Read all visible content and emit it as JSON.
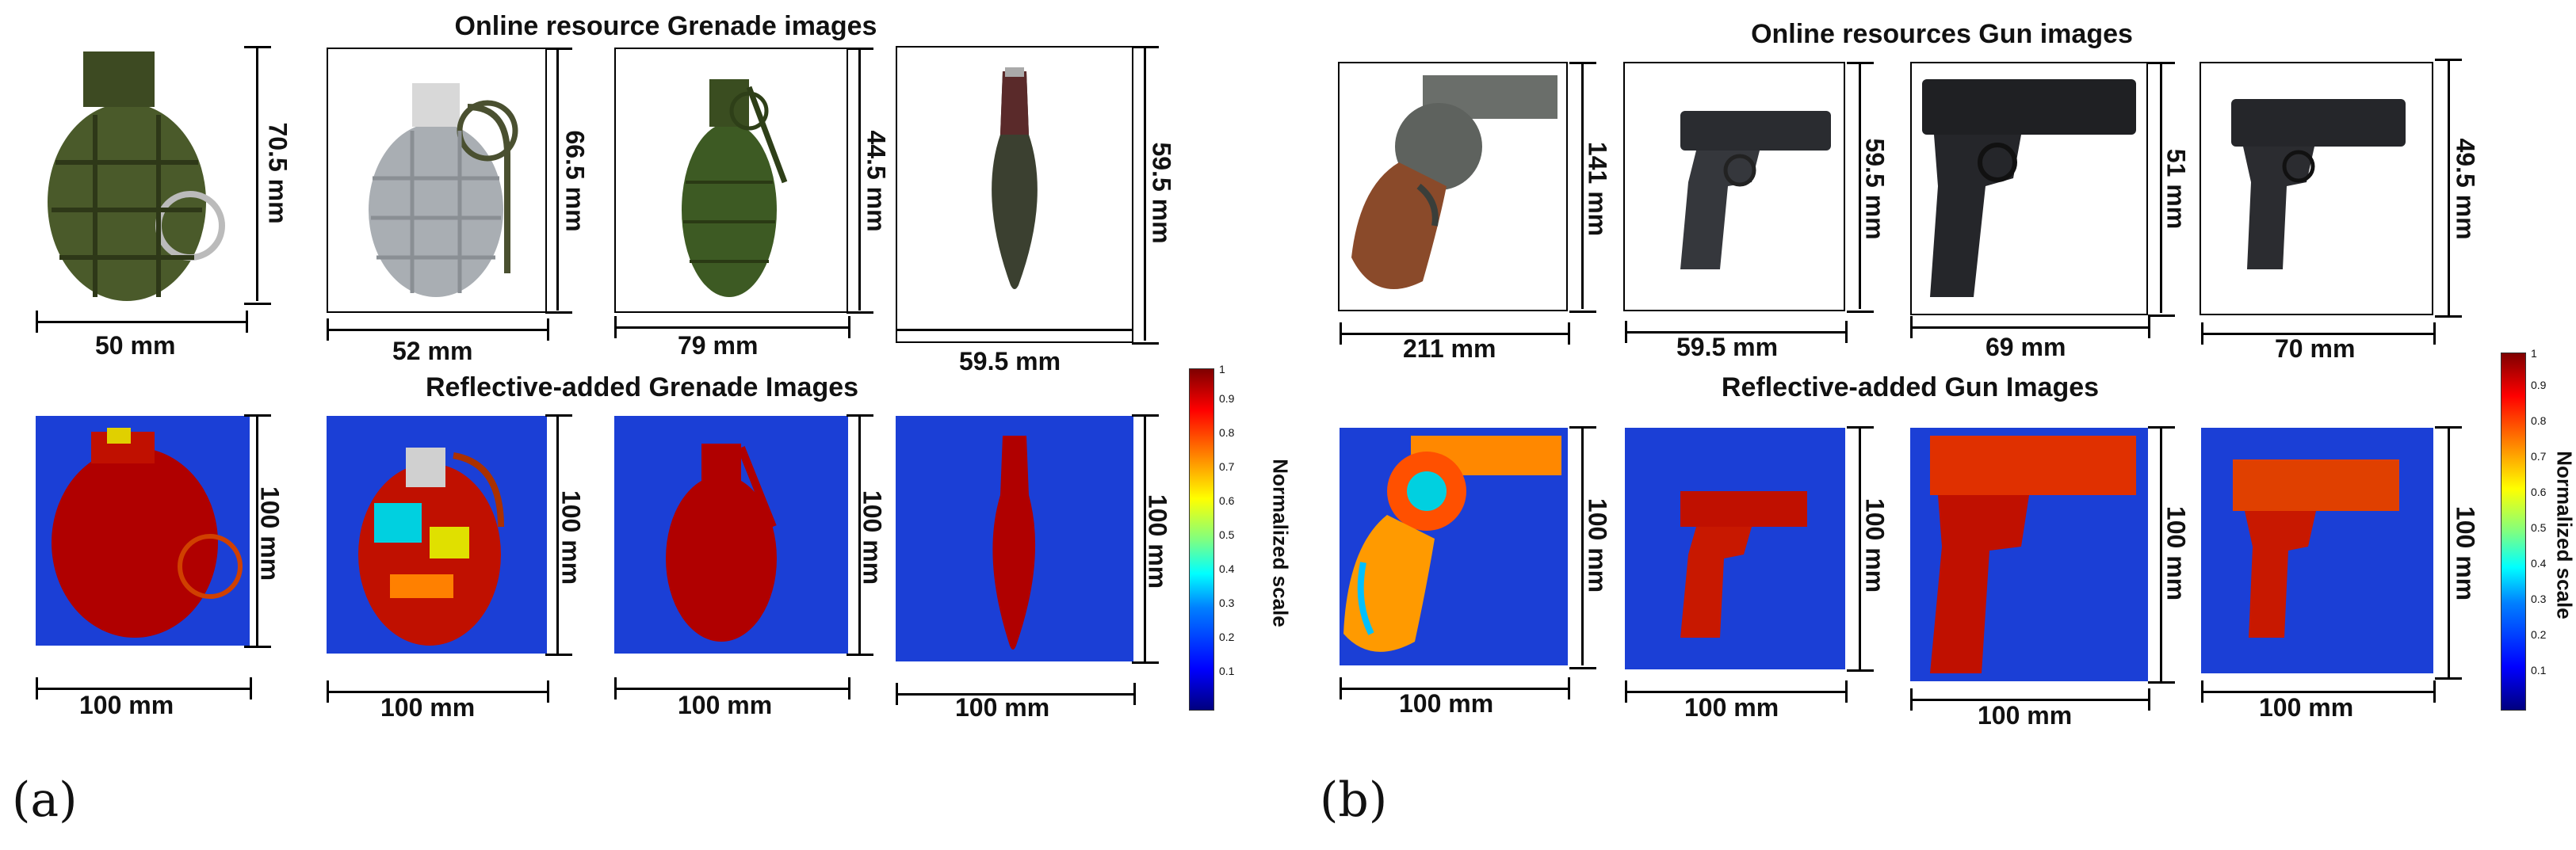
{
  "panel_a": {
    "label": "(a)",
    "top_title": "Online resource Grenade images",
    "bottom_title": "Reflective-added Grenade Images",
    "top_items": [
      {
        "width": "50 mm",
        "height": "70.5 mm"
      },
      {
        "width": "52 mm",
        "height": "66.5 mm"
      },
      {
        "width": "79 mm",
        "height": "44.5 mm"
      },
      {
        "width": "59.5 mm",
        "height": "59.5 mm"
      }
    ],
    "bottom_items": [
      {
        "width": "100 mm",
        "height": "100 mm"
      },
      {
        "width": "100 mm",
        "height": "100 mm"
      },
      {
        "width": "100 mm",
        "height": "100 mm"
      },
      {
        "width": "100 mm",
        "height": "100 mm"
      }
    ],
    "colorbar_label": "Normalized scale"
  },
  "panel_b": {
    "label": "(b)",
    "top_title": "Online resources Gun images",
    "bottom_title": "Reflective-added Gun Images",
    "top_items": [
      {
        "width": "211 mm",
        "height": "141 mm"
      },
      {
        "width": "59.5  mm",
        "height": "59.5 mm"
      },
      {
        "width": "69 mm",
        "height": "51 mm"
      },
      {
        "width": "70 mm",
        "height": "49.5 mm"
      }
    ],
    "bottom_items": [
      {
        "width": "100 mm",
        "height": "100 mm"
      },
      {
        "width": "100 mm",
        "height": "100 mm"
      },
      {
        "width": "100 mm",
        "height": "100 mm"
      },
      {
        "width": "100 mm",
        "height": "100 mm"
      }
    ],
    "colorbar_label": "Normalized scale"
  },
  "colorbar_ticks": [
    "1",
    "0.9",
    "0.8",
    "0.7",
    "0.6",
    "0.5",
    "0.4",
    "0.3",
    "0.2",
    "0.1"
  ]
}
